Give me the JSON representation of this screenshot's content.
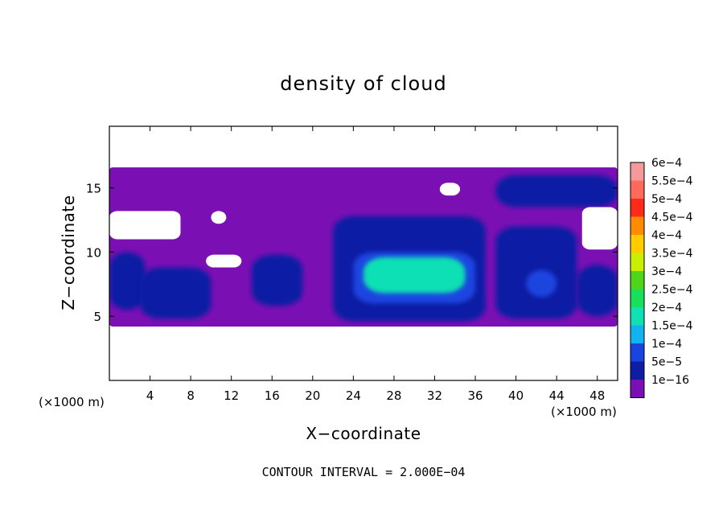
{
  "chart_data": {
    "type": "heatmap",
    "title": "density of cloud",
    "xlabel": "X−coordinate",
    "ylabel": "Z−coordinate",
    "x_unit_label": "(×1000 m)",
    "y_unit_label": "(×1000 m)",
    "xlim": [
      0,
      50
    ],
    "ylim": [
      0,
      19.8
    ],
    "x_ticks": [
      4,
      8,
      12,
      16,
      20,
      24,
      28,
      32,
      36,
      40,
      44,
      48
    ],
    "y_ticks": [
      5,
      10,
      15
    ],
    "colorbar": {
      "labels": [
        "6e−4",
        "5.5e−4",
        "5e−4",
        "4.5e−4",
        "4e−4",
        "3.5e−4",
        "3e−4",
        "2.5e−4",
        "2e−4",
        "1.5e−4",
        "1e−4",
        "5e−5",
        "1e−16"
      ],
      "values": [
        0.0006,
        0.00055,
        0.0005,
        0.00045,
        0.0004,
        0.00035,
        0.0003,
        0.00025,
        0.0002,
        0.00015,
        0.0001,
        5e-05,
        1e-16
      ],
      "colors": [
        "#f59a9a",
        "#ff6a5a",
        "#ff2a1a",
        "#ff8c00",
        "#ffcc00",
        "#c8f000",
        "#4fd61a",
        "#18e05a",
        "#10e0b4",
        "#12b4f0",
        "#1a44e0",
        "#0e1ea4",
        "#7a10b4"
      ]
    },
    "cloud_regions": [
      {
        "level": 0,
        "desc": "base layer",
        "x": [
          0,
          50
        ],
        "z": [
          4.2,
          16.6
        ]
      },
      {
        "level": 1,
        "x": [
          0,
          3.5
        ],
        "z": [
          5.5,
          10
        ]
      },
      {
        "level": 1,
        "x": [
          3,
          10
        ],
        "z": [
          4.8,
          8.8
        ]
      },
      {
        "level": 1,
        "x": [
          14,
          19
        ],
        "z": [
          5.8,
          9.8
        ]
      },
      {
        "level": 1,
        "x": [
          22,
          37
        ],
        "z": [
          4.6,
          12.8
        ]
      },
      {
        "level": 1,
        "x": [
          38,
          46
        ],
        "z": [
          4.8,
          12
        ]
      },
      {
        "level": 1,
        "x": [
          46,
          50
        ],
        "z": [
          5,
          9
        ]
      },
      {
        "level": 1,
        "x": [
          38,
          50
        ],
        "z": [
          13.5,
          16
        ]
      },
      {
        "level": 2,
        "x": [
          24,
          36
        ],
        "z": [
          6,
          10
        ]
      },
      {
        "level": 2,
        "x": [
          41,
          44
        ],
        "z": [
          6.5,
          8.6
        ]
      },
      {
        "level": 3,
        "x": [
          25,
          35
        ],
        "z": [
          6.8,
          9.6
        ]
      }
    ],
    "clear_regions": [
      {
        "x": [
          0,
          7
        ],
        "z": [
          11,
          13.2
        ]
      },
      {
        "x": [
          10,
          11.5
        ],
        "z": [
          12.2,
          13.2
        ]
      },
      {
        "x": [
          9.5,
          13
        ],
        "z": [
          8.8,
          9.8
        ]
      },
      {
        "x": [
          46.5,
          50
        ],
        "z": [
          10.2,
          13.5
        ]
      },
      {
        "x": [
          32.5,
          34.5
        ],
        "z": [
          14.4,
          15.4
        ]
      }
    ],
    "note": "CONTOUR INTERVAL = 2.000E−04"
  }
}
